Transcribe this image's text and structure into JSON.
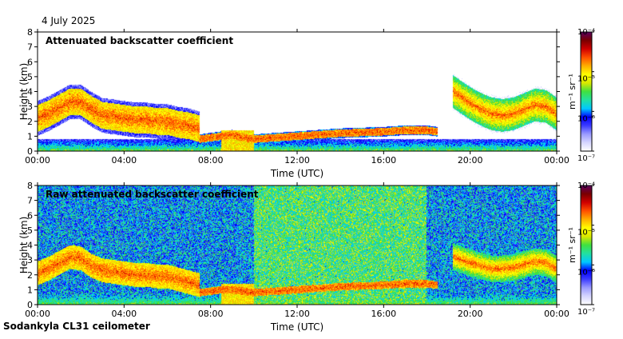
{
  "date": "4 July 2025",
  "footer": "Sodankyla CL31 ceilometer",
  "colors": {
    "colormap": [
      "#ffffff",
      "#d6d6ff",
      "#9a9aff",
      "#3b3bff",
      "#0000ff",
      "#00c8ff",
      "#22e0a0",
      "#40e040",
      "#d8e800",
      "#ffff00",
      "#ffb000",
      "#ff5000",
      "#d00000",
      "#7a0000",
      "#5a0060"
    ],
    "axis": "#000000"
  },
  "chart_data": [
    {
      "type": "heatmap",
      "title": "Attenuated backscatter coefficient",
      "xlabel": "Time (UTC)",
      "ylabel": "Height (km)",
      "xlim": [
        0,
        24
      ],
      "ylim": [
        0,
        8
      ],
      "xticks": [
        0,
        4,
        8,
        12,
        16,
        20,
        24
      ],
      "xtick_labels": [
        "00:00",
        "04:00",
        "08:00",
        "12:00",
        "16:00",
        "20:00",
        "00:00"
      ],
      "yticks": [
        0,
        1,
        2,
        3,
        4,
        5,
        6,
        7,
        8
      ],
      "ytick_labels": [
        "0",
        "1",
        "2",
        "3",
        "4",
        "5",
        "6",
        "7",
        "8"
      ],
      "colorbar": {
        "label": "m⁻¹ sr⁻¹",
        "scale": "log",
        "range": [
          1e-07,
          0.0001
        ],
        "tick_labels": [
          "10⁻⁴",
          "10⁻⁵",
          "10⁻⁶",
          "10⁻⁷"
        ]
      },
      "features": {
        "layers": [
          {
            "x": [
              0,
              0.5,
              1,
              1.5,
              2,
              2.5,
              3,
              3.5,
              4,
              4.5,
              5,
              5.5,
              6,
              6.5,
              7,
              7.5
            ],
            "y": [
              2.2,
              2.5,
              2.9,
              3.3,
              3.3,
              2.8,
              2.4,
              2.3,
              2.2,
              2.1,
              2.1,
              2.0,
              2.0,
              1.8,
              1.7,
              1.5
            ],
            "thickness": 0.9,
            "min": 0.7
          },
          {
            "x": [
              7.5,
              8,
              8.5,
              9,
              9.5,
              10,
              11,
              12,
              13,
              14,
              15,
              16,
              17,
              18,
              18.5
            ],
            "y": [
              0.8,
              0.9,
              1.0,
              1.1,
              0.9,
              0.8,
              0.9,
              1.0,
              1.1,
              1.2,
              1.25,
              1.3,
              1.4,
              1.4,
              1.3
            ],
            "thickness": 0.25,
            "min": 0.8
          },
          {
            "x": [
              19.2,
              19.6,
              20,
              20.5,
              21,
              21.5,
              22,
              22.5,
              23,
              23.5,
              24
            ],
            "y": [
              4.0,
              3.6,
              3.2,
              2.8,
              2.5,
              2.4,
              2.5,
              2.8,
              3.1,
              3.0,
              2.5
            ],
            "thickness": 1.1,
            "min": 0.5
          }
        ],
        "precipitation": {
          "x_range": [
            8.5,
            10
          ],
          "top": 1.4
        },
        "noise_level": "low"
      }
    },
    {
      "type": "heatmap",
      "title": "Raw attenuated backscatter coefficient",
      "xlabel": "Time (UTC)",
      "ylabel": "Height (km)",
      "xlim": [
        0,
        24
      ],
      "ylim": [
        0,
        8
      ],
      "xticks": [
        0,
        4,
        8,
        12,
        16,
        20,
        24
      ],
      "xtick_labels": [
        "00:00",
        "04:00",
        "08:00",
        "12:00",
        "16:00",
        "20:00",
        "00:00"
      ],
      "yticks": [
        0,
        1,
        2,
        3,
        4,
        5,
        6,
        7,
        8
      ],
      "ytick_labels": [
        "0",
        "1",
        "2",
        "3",
        "4",
        "5",
        "6",
        "7",
        "8"
      ],
      "colorbar": {
        "label": "m⁻¹ sr⁻¹",
        "scale": "log",
        "range": [
          1e-07,
          0.0001
        ],
        "tick_labels": [
          "10⁻⁴",
          "10⁻⁵",
          "10⁻⁶",
          "10⁻⁷"
        ]
      },
      "features": {
        "layers": [
          {
            "x": [
              0,
              0.5,
              1,
              1.5,
              2,
              2.5,
              3,
              3.5,
              4,
              4.5,
              5,
              5.5,
              6,
              6.5,
              7,
              7.5
            ],
            "y": [
              2.1,
              2.4,
              2.8,
              3.2,
              3.1,
              2.6,
              2.3,
              2.2,
              2.1,
              2.0,
              2.0,
              1.9,
              1.9,
              1.7,
              1.5,
              1.3
            ],
            "thickness": 0.8,
            "min": 0.7
          },
          {
            "x": [
              7.5,
              8,
              8.5,
              9,
              9.5,
              10,
              11,
              12,
              13,
              14,
              15,
              16,
              17,
              18,
              18.5
            ],
            "y": [
              0.8,
              0.9,
              1.0,
              1.0,
              0.9,
              0.8,
              0.9,
              1.0,
              1.1,
              1.2,
              1.25,
              1.3,
              1.4,
              1.4,
              1.3
            ],
            "thickness": 0.25,
            "min": 0.8
          },
          {
            "x": [
              19.2,
              19.6,
              20,
              20.5,
              21,
              21.5,
              22,
              22.5,
              23,
              23.5,
              24
            ],
            "y": [
              3.2,
              3.0,
              2.8,
              2.6,
              2.4,
              2.4,
              2.5,
              2.7,
              2.9,
              2.8,
              2.4
            ],
            "thickness": 0.9,
            "min": 0.5
          }
        ],
        "precipitation": {
          "x_range": [
            8.5,
            10
          ],
          "top": 1.4
        },
        "noise_level": "high"
      }
    }
  ]
}
